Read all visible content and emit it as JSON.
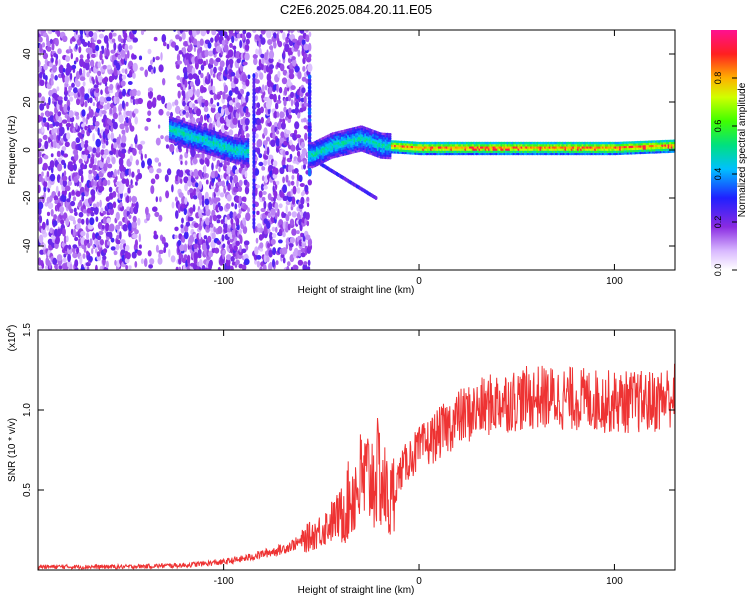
{
  "title": "C2E6.2025.084.20.11.E05",
  "chart_data": [
    {
      "type": "heatmap",
      "xlabel": "Height of straight line (km)",
      "ylabel": "Frequency (Hz)",
      "xlim": [
        -195,
        131
      ],
      "ylim": [
        -50,
        50
      ],
      "x_ticks": [
        -100,
        0,
        100
      ],
      "y_ticks": [
        -40,
        -20,
        0,
        20,
        40
      ],
      "colorbar": {
        "label": "Normalized spectral amplitude",
        "ticks": [
          "0.0",
          "0.2",
          "0.4",
          "0.6",
          "0.8"
        ],
        "range": [
          0,
          1
        ]
      },
      "grid": false,
      "features": {
        "noise_region_x": [
          -195,
          -57
        ],
        "gap_x": [
          -88,
          -85
        ],
        "signal_band": [
          {
            "x": -125,
            "f": 8
          },
          {
            "x": -110,
            "f": 4
          },
          {
            "x": -95,
            "f": 0
          },
          {
            "x": -55,
            "f": -2
          },
          {
            "x": -45,
            "f": 2
          },
          {
            "x": -30,
            "f": 5
          },
          {
            "x": -20,
            "f": 2
          },
          {
            "x": 0,
            "f": 1
          },
          {
            "x": 50,
            "f": 1
          },
          {
            "x": 100,
            "f": 1
          },
          {
            "x": 131,
            "f": 2
          }
        ]
      }
    },
    {
      "type": "line",
      "xlabel": "Height of straight line (km)",
      "ylabel": "SNR (10 * v/v)",
      "y_multiplier": "(x10",
      "y_multiplier_exp": "4",
      "y_multiplier_close": ")",
      "xlim": [
        -195,
        131
      ],
      "ylim": [
        0,
        1.5
      ],
      "x_ticks": [
        -100,
        0,
        100
      ],
      "y_ticks": [
        "0.5",
        "1.0",
        "1.5"
      ],
      "color": "#ee3333",
      "grid": false,
      "series": [
        {
          "x": [
            -195,
            -150,
            -120,
            -100,
            -90,
            -80,
            -70,
            -60,
            -50,
            -40,
            -30,
            -20,
            -15,
            -10,
            -5,
            0,
            10,
            20,
            30,
            40,
            60,
            80,
            100,
            120,
            131
          ],
          "y": [
            0.02,
            0.02,
            0.03,
            0.05,
            0.07,
            0.1,
            0.13,
            0.18,
            0.25,
            0.35,
            0.55,
            0.6,
            0.4,
            0.6,
            0.7,
            0.75,
            0.85,
            0.95,
            1.0,
            1.05,
            1.08,
            1.07,
            1.05,
            1.05,
            1.1
          ]
        }
      ]
    }
  ]
}
